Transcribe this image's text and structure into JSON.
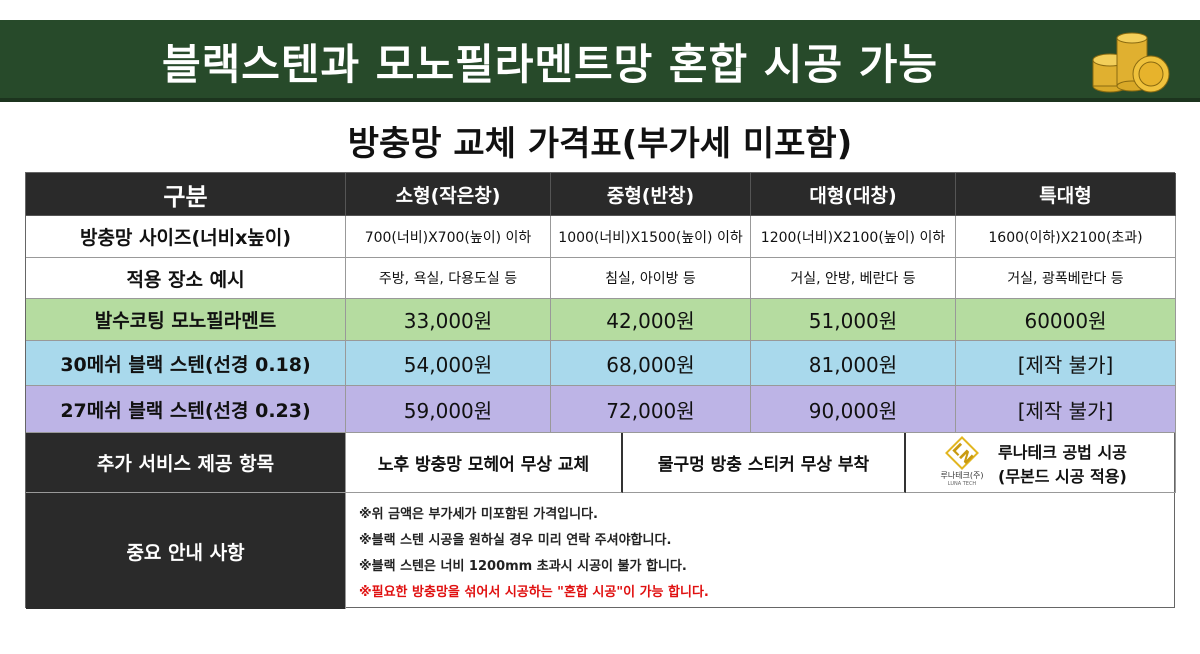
{
  "banner": {
    "title": "블랙스텐과 모노필라멘트망 혼합 시공 가능"
  },
  "subtitle": "방충망 교체 가격표(부가세 미포함)",
  "table": {
    "header": [
      "구분",
      "소형(작은창)",
      "중형(반창)",
      "대형(대창)",
      "특대형"
    ],
    "rows": [
      [
        "방충망 사이즈(너비x높이)",
        "700(너비)X700(높이) 이하",
        "1000(너비)X1500(높이) 이하",
        "1200(너비)X2100(높이) 이하",
        "1600(이하)X2100(초과)"
      ],
      [
        "적용 장소 예시",
        "주방, 욕실, 다용도실 등",
        "침실, 아이방 등",
        "거실, 안방, 베란다 등",
        "거실, 광폭베란다 등"
      ],
      [
        "발수코팅 모노필라멘트",
        "33,000원",
        "42,000원",
        "51,000원",
        "60000원"
      ],
      [
        "30메쉬 블랙 스텐(선경 0.18)",
        "54,000원",
        "68,000원",
        "81,000원",
        "[제작 불가]"
      ],
      [
        "27메쉬 블랙 스텐(선경 0.23)",
        "59,000원",
        "72,000원",
        "90,000원",
        "[제작 불가]"
      ]
    ]
  },
  "services": {
    "label": "추가 서비스 제공 항목",
    "items": [
      "노후 방충망 모헤어 무상 교체",
      "물구멍 방충 스티커 무상 부착"
    ],
    "logo": {
      "mark": "LN",
      "name": "루나테크(주)",
      "sub": "LUNA TECH"
    },
    "method": [
      "루나테크 공법 시공",
      "(무본드 시공 적용)"
    ]
  },
  "notes": {
    "label": "중요 안내 사항",
    "lines": [
      "※위 금액은 부가세가 미포함된 가격입니다.",
      "※블랙 스텐 시공을 원하실 경우 미리 연락 주셔야합니다.",
      "※블랙 스텐은 너비 1200mm 초과시 시공이 불가 합니다.",
      "※필요한 방충망을 섞어서 시공하는 \"혼합 시공\"이 가능 합니다."
    ]
  }
}
